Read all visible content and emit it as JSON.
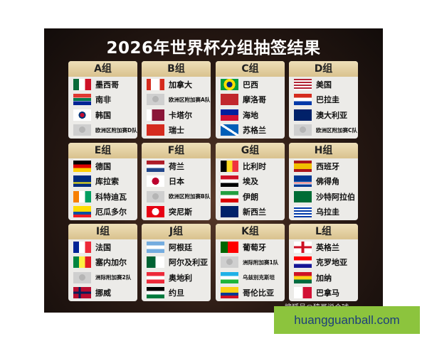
{
  "title": "2026年世界杯分组抽签结果",
  "groups": [
    {
      "label": "A组",
      "teams": [
        {
          "name": "墨西哥",
          "flag": "mexico"
        },
        {
          "name": "南非",
          "flag": "south-africa"
        },
        {
          "name": "韩国",
          "flag": "korea"
        },
        {
          "name": "欧洲区附加赛D队",
          "flag": "placeholder"
        }
      ]
    },
    {
      "label": "B组",
      "teams": [
        {
          "name": "加拿大",
          "flag": "canada"
        },
        {
          "name": "欧洲区附加赛A队",
          "flag": "placeholder"
        },
        {
          "name": "卡塔尔",
          "flag": "qatar"
        },
        {
          "name": "瑞士",
          "flag": "switzerland"
        }
      ]
    },
    {
      "label": "C组",
      "teams": [
        {
          "name": "巴西",
          "flag": "brazil"
        },
        {
          "name": "摩洛哥",
          "flag": "morocco"
        },
        {
          "name": "海地",
          "flag": "haiti"
        },
        {
          "name": "苏格兰",
          "flag": "scotland"
        }
      ]
    },
    {
      "label": "D组",
      "teams": [
        {
          "name": "美国",
          "flag": "usa"
        },
        {
          "name": "巴拉圭",
          "flag": "paraguay"
        },
        {
          "name": "澳大利亚",
          "flag": "australia"
        },
        {
          "name": "欧洲区附加赛C队",
          "flag": "placeholder"
        }
      ]
    },
    {
      "label": "E组",
      "teams": [
        {
          "name": "德国",
          "flag": "germany"
        },
        {
          "name": "库拉索",
          "flag": "curacao"
        },
        {
          "name": "科特迪瓦",
          "flag": "ivory-coast"
        },
        {
          "name": "厄瓜多尔",
          "flag": "ecuador"
        }
      ]
    },
    {
      "label": "F组",
      "teams": [
        {
          "name": "荷兰",
          "flag": "netherlands"
        },
        {
          "name": "日本",
          "flag": "japan"
        },
        {
          "name": "欧洲区附加赛B队",
          "flag": "placeholder"
        },
        {
          "name": "突尼斯",
          "flag": "tunisia"
        }
      ]
    },
    {
      "label": "G组",
      "teams": [
        {
          "name": "比利时",
          "flag": "belgium"
        },
        {
          "name": "埃及",
          "flag": "egypt"
        },
        {
          "name": "伊朗",
          "flag": "iran"
        },
        {
          "name": "新西兰",
          "flag": "new-zealand"
        }
      ]
    },
    {
      "label": "H组",
      "teams": [
        {
          "name": "西班牙",
          "flag": "spain"
        },
        {
          "name": "佛得角",
          "flag": "cape-verde"
        },
        {
          "name": "沙特阿拉伯",
          "flag": "saudi-arabia"
        },
        {
          "name": "乌拉圭",
          "flag": "uruguay"
        }
      ]
    },
    {
      "label": "I组",
      "teams": [
        {
          "name": "法国",
          "flag": "france"
        },
        {
          "name": "塞内加尔",
          "flag": "senegal"
        },
        {
          "name": "洲际附加赛2队",
          "flag": "placeholder"
        },
        {
          "name": "挪威",
          "flag": "norway"
        }
      ]
    },
    {
      "label": "J组",
      "teams": [
        {
          "name": "阿根廷",
          "flag": "argentina"
        },
        {
          "name": "阿尔及利亚",
          "flag": "algeria"
        },
        {
          "name": "奥地利",
          "flag": "austria"
        },
        {
          "name": "约旦",
          "flag": "jordan"
        }
      ]
    },
    {
      "label": "K组",
      "teams": [
        {
          "name": "葡萄牙",
          "flag": "portugal"
        },
        {
          "name": "洲际附加赛1队",
          "flag": "placeholder"
        },
        {
          "name": "乌兹别克斯坦",
          "flag": "uzbekistan"
        },
        {
          "name": "哥伦比亚",
          "flag": "colombia"
        }
      ]
    },
    {
      "label": "L组",
      "teams": [
        {
          "name": "英格兰",
          "flag": "england"
        },
        {
          "name": "克罗地亚",
          "flag": "croatia"
        },
        {
          "name": "加纳",
          "flag": "ghana"
        },
        {
          "name": "巴拿马",
          "flag": "panama"
        }
      ]
    }
  ],
  "watermark": "搜狐号@猿哥说个球",
  "banner": {
    "text": "huangguanball.com",
    "color": "#8cc43d",
    "text_color": "#1d3f7a"
  }
}
